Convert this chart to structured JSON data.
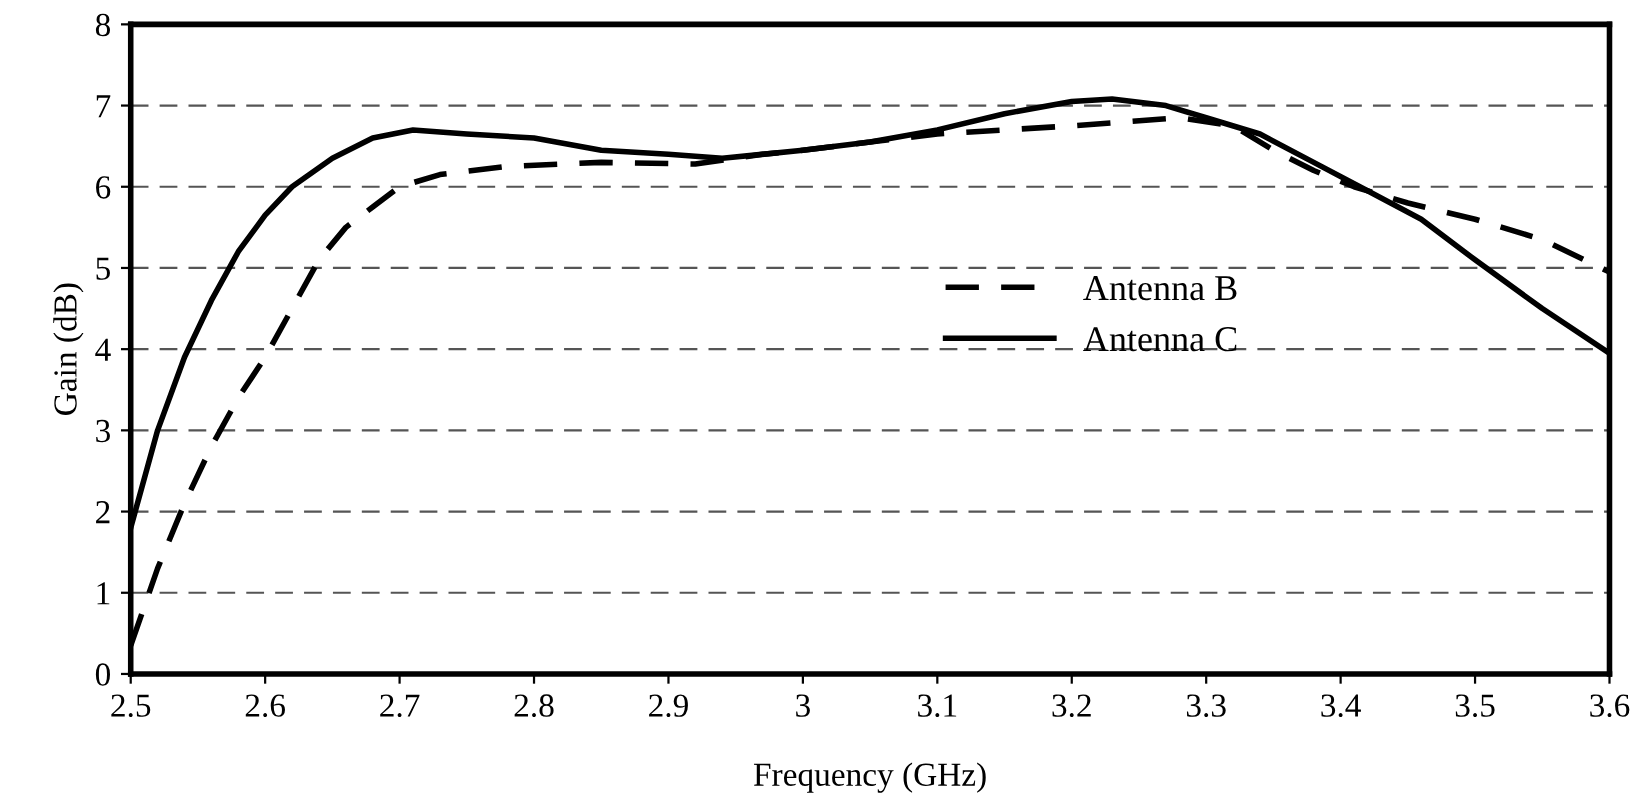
{
  "chart_data": {
    "type": "line",
    "xlabel": "Frequency (GHz)",
    "ylabel": "Gain (dB)",
    "xlim": [
      2.5,
      3.6
    ],
    "xticks": [
      2.5,
      2.6,
      2.7,
      2.8,
      2.9,
      3,
      3.1,
      3.2,
      3.3,
      3.4,
      3.5,
      3.6
    ],
    "ylim": [
      0,
      8
    ],
    "yticks": [
      0,
      1,
      2,
      3,
      4,
      5,
      6,
      7,
      8
    ],
    "grid": "y",
    "legend": "center",
    "series": [
      {
        "name": "Antenna B",
        "color": "#000000",
        "line_style": "dashed",
        "x": [
          2.5,
          2.52,
          2.54,
          2.56,
          2.58,
          2.6,
          2.62,
          2.64,
          2.66,
          2.68,
          2.7,
          2.73,
          2.78,
          2.85,
          2.92,
          2.97,
          3.0,
          3.05,
          3.1,
          3.2,
          3.28,
          3.32,
          3.35,
          3.38,
          3.41,
          3.45,
          3.5,
          3.55,
          3.6
        ],
        "values": [
          0.35,
          1.3,
          2.1,
          2.8,
          3.4,
          3.9,
          4.5,
          5.1,
          5.5,
          5.75,
          6.0,
          6.15,
          6.25,
          6.3,
          6.28,
          6.4,
          6.45,
          6.55,
          6.65,
          6.75,
          6.85,
          6.75,
          6.45,
          6.2,
          6.0,
          5.8,
          5.6,
          5.35,
          4.95
        ]
      },
      {
        "name": "Antenna C",
        "color": "#000000",
        "line_style": "solid",
        "x": [
          2.5,
          2.52,
          2.54,
          2.56,
          2.58,
          2.6,
          2.62,
          2.65,
          2.68,
          2.71,
          2.75,
          2.8,
          2.85,
          2.9,
          2.94,
          3.0,
          3.05,
          3.1,
          3.15,
          3.2,
          3.23,
          3.27,
          3.3,
          3.34,
          3.38,
          3.42,
          3.46,
          3.5,
          3.55,
          3.6
        ],
        "values": [
          1.8,
          3.0,
          3.9,
          4.6,
          5.2,
          5.65,
          6.0,
          6.35,
          6.6,
          6.7,
          6.65,
          6.6,
          6.45,
          6.4,
          6.35,
          6.45,
          6.55,
          6.7,
          6.9,
          7.05,
          7.08,
          7.0,
          6.85,
          6.65,
          6.3,
          5.95,
          5.6,
          5.1,
          4.5,
          3.95
        ]
      }
    ]
  }
}
